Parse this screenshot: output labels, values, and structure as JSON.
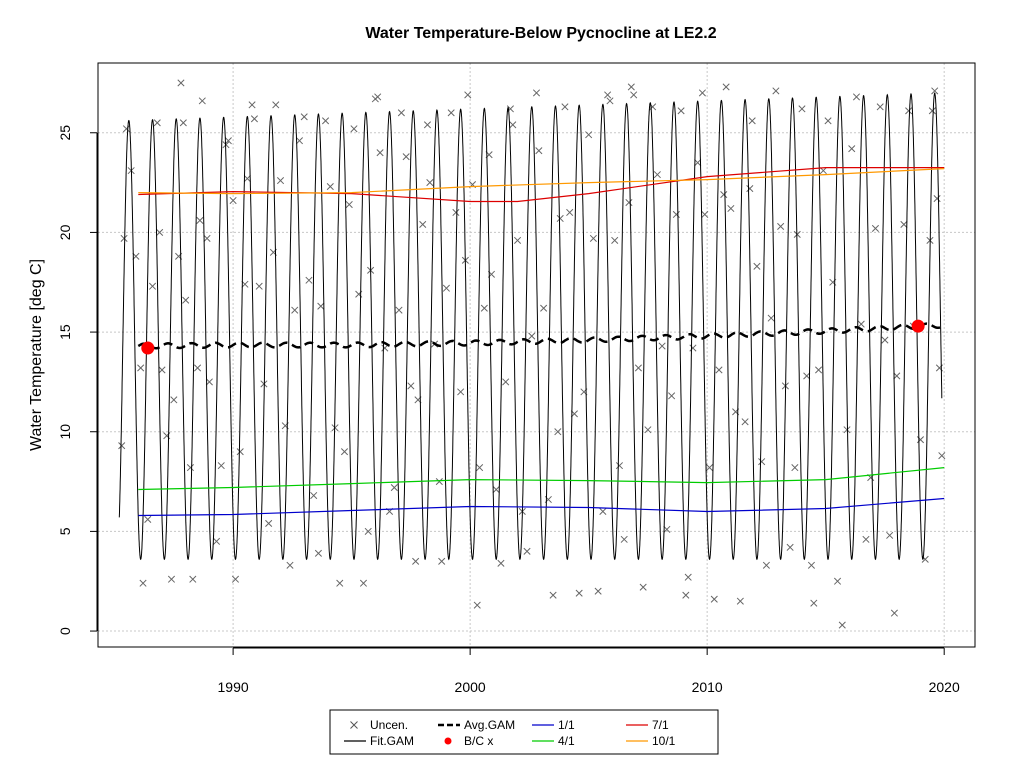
{
  "chart_data": {
    "type": "line",
    "title": "Water Temperature-Below Pycnocline at LE2.2",
    "xlabel": "",
    "ylabel": "Water Temperature [deg C]",
    "xlim": [
      1984.3,
      2021.3
    ],
    "ylim": [
      -0.8,
      28.5
    ],
    "x_ticks": [
      {
        "value": 1990,
        "label": "1990"
      },
      {
        "value": 2000,
        "label": "2000"
      },
      {
        "value": 2010,
        "label": "2010"
      },
      {
        "value": 2020,
        "label": "2020"
      }
    ],
    "y_ticks": [
      {
        "value": 0,
        "label": "0"
      },
      {
        "value": 5,
        "label": "5"
      },
      {
        "value": 10,
        "label": "10"
      },
      {
        "value": 15,
        "label": "15"
      },
      {
        "value": 20,
        "label": "20"
      },
      {
        "value": 25,
        "label": "25"
      }
    ],
    "grid": true,
    "legend": {
      "placement": "bottom-center",
      "entries": [
        {
          "label": "Uncen.",
          "symbol": "x",
          "color": "#555555"
        },
        {
          "label": "Fit.GAM",
          "symbol": "line",
          "color": "#000000"
        },
        {
          "label": "Avg.GAM",
          "symbol": "dashed-line",
          "color": "#000000"
        },
        {
          "label": "B/C x",
          "symbol": "dot",
          "color": "#ff0000"
        },
        {
          "label": "1/1",
          "symbol": "line",
          "color": "#0000cc"
        },
        {
          "label": "4/1",
          "symbol": "line",
          "color": "#00cc00"
        },
        {
          "label": "7/1",
          "symbol": "line",
          "color": "#dd0000"
        },
        {
          "label": "10/1",
          "symbol": "line",
          "color": "#ff9900"
        }
      ]
    },
    "series": [
      {
        "name": "Fit.GAM",
        "color": "#000000",
        "style": "seasonal-oscillation",
        "x_start": 1985.2,
        "x_end": 2019.9,
        "base_min": 3.6,
        "base_max": 25.6,
        "max_end": 27.0,
        "peak_phase": 0.6
      },
      {
        "name": "Avg.GAM",
        "color": "#000000",
        "style": "dashed",
        "x": [
          1986,
          1990,
          1995,
          2000,
          2005,
          2010,
          2015,
          2020
        ],
        "y": [
          14.3,
          14.35,
          14.35,
          14.45,
          14.6,
          14.8,
          15.05,
          15.35
        ]
      },
      {
        "name": "1/1",
        "color": "#0000cc",
        "x": [
          1986,
          1990,
          1995,
          2000,
          2005,
          2010,
          2015,
          2020
        ],
        "y": [
          5.8,
          5.85,
          6.05,
          6.25,
          6.2,
          6.0,
          6.15,
          6.65
        ]
      },
      {
        "name": "4/1",
        "color": "#00cc00",
        "x": [
          1986,
          1990,
          1995,
          2000,
          2005,
          2010,
          2015,
          2020
        ],
        "y": [
          7.1,
          7.2,
          7.4,
          7.6,
          7.55,
          7.45,
          7.6,
          8.2
        ]
      },
      {
        "name": "7/1",
        "color": "#dd0000",
        "x": [
          1986,
          1990,
          1995,
          2000,
          2002,
          2005,
          2010,
          2015,
          2020
        ],
        "y": [
          21.9,
          22.05,
          21.95,
          21.55,
          21.55,
          21.95,
          22.8,
          23.25,
          23.25
        ]
      },
      {
        "name": "10/1",
        "color": "#ff9900",
        "x": [
          1986,
          1990,
          1995,
          2000,
          2005,
          2010,
          2015,
          2020
        ],
        "y": [
          22.0,
          21.95,
          22.0,
          22.3,
          22.5,
          22.65,
          22.9,
          23.2
        ]
      },
      {
        "name": "B/C x",
        "color": "#ff0000",
        "style": "points",
        "x": [
          1986.4,
          2018.9
        ],
        "y": [
          14.2,
          15.3
        ]
      }
    ],
    "uncensored_points": [
      [
        1985.3,
        9.3
      ],
      [
        1985.4,
        19.7
      ],
      [
        1985.5,
        25.2
      ],
      [
        1985.7,
        23.1
      ],
      [
        1985.9,
        18.8
      ],
      [
        1986.1,
        13.2
      ],
      [
        1986.2,
        2.4
      ],
      [
        1986.4,
        5.6
      ],
      [
        1986.6,
        17.3
      ],
      [
        1986.8,
        25.5
      ],
      [
        1986.9,
        20.0
      ],
      [
        1987.0,
        13.1
      ],
      [
        1987.2,
        9.8
      ],
      [
        1987.4,
        2.6
      ],
      [
        1987.5,
        11.6
      ],
      [
        1987.7,
        18.8
      ],
      [
        1987.8,
        27.5
      ],
      [
        1987.9,
        25.5
      ],
      [
        1988.0,
        16.6
      ],
      [
        1988.2,
        8.2
      ],
      [
        1988.3,
        2.6
      ],
      [
        1988.5,
        13.2
      ],
      [
        1988.6,
        20.6
      ],
      [
        1988.7,
        26.6
      ],
      [
        1988.9,
        19.7
      ],
      [
        1989.0,
        12.5
      ],
      [
        1989.3,
        4.5
      ],
      [
        1989.5,
        8.3
      ],
      [
        1989.7,
        24.4
      ],
      [
        1989.8,
        24.6
      ],
      [
        1990.0,
        21.6
      ],
      [
        1990.1,
        2.6
      ],
      [
        1990.3,
        9.0
      ],
      [
        1990.5,
        17.4
      ],
      [
        1990.6,
        22.7
      ],
      [
        1990.8,
        26.4
      ],
      [
        1990.9,
        25.7
      ],
      [
        1991.1,
        17.3
      ],
      [
        1991.3,
        12.4
      ],
      [
        1991.5,
        5.4
      ],
      [
        1991.7,
        19.0
      ],
      [
        1991.8,
        26.4
      ],
      [
        1992.0,
        22.6
      ],
      [
        1992.2,
        10.3
      ],
      [
        1992.4,
        3.3
      ],
      [
        1992.6,
        16.1
      ],
      [
        1992.8,
        24.6
      ],
      [
        1993.0,
        25.8
      ],
      [
        1993.2,
        17.6
      ],
      [
        1993.4,
        6.8
      ],
      [
        1993.6,
        3.9
      ],
      [
        1993.7,
        16.3
      ],
      [
        1993.9,
        25.6
      ],
      [
        1994.1,
        22.3
      ],
      [
        1994.3,
        10.2
      ],
      [
        1994.5,
        2.4
      ],
      [
        1994.7,
        9.0
      ],
      [
        1994.9,
        21.4
      ],
      [
        1995.1,
        25.2
      ],
      [
        1995.3,
        16.9
      ],
      [
        1995.5,
        2.4
      ],
      [
        1995.7,
        5.0
      ],
      [
        1995.8,
        18.1
      ],
      [
        1996.0,
        26.7
      ],
      [
        1996.1,
        26.8
      ],
      [
        1996.2,
        24.0
      ],
      [
        1996.4,
        14.2
      ],
      [
        1996.6,
        6.0
      ],
      [
        1996.8,
        7.2
      ],
      [
        1997.0,
        16.1
      ],
      [
        1997.1,
        26.0
      ],
      [
        1997.3,
        23.8
      ],
      [
        1997.5,
        12.3
      ],
      [
        1997.7,
        3.5
      ],
      [
        1997.8,
        11.6
      ],
      [
        1998.0,
        20.4
      ],
      [
        1998.2,
        25.4
      ],
      [
        1998.3,
        22.5
      ],
      [
        1998.5,
        14.4
      ],
      [
        1998.7,
        7.5
      ],
      [
        1998.8,
        3.5
      ],
      [
        1999.0,
        17.2
      ],
      [
        1999.2,
        26.0
      ],
      [
        1999.4,
        21.0
      ],
      [
        1999.6,
        12.0
      ],
      [
        1999.8,
        18.6
      ],
      [
        1999.9,
        26.9
      ],
      [
        2000.1,
        22.4
      ],
      [
        2000.3,
        1.3
      ],
      [
        2000.4,
        8.2
      ],
      [
        2000.6,
        16.2
      ],
      [
        2000.8,
        23.9
      ],
      [
        2000.9,
        17.9
      ],
      [
        2001.1,
        7.1
      ],
      [
        2001.3,
        3.4
      ],
      [
        2001.5,
        12.5
      ],
      [
        2001.7,
        26.2
      ],
      [
        2001.8,
        25.4
      ],
      [
        2002.0,
        19.6
      ],
      [
        2002.2,
        6.0
      ],
      [
        2002.4,
        4.0
      ],
      [
        2002.6,
        14.8
      ],
      [
        2002.8,
        27.0
      ],
      [
        2002.9,
        24.1
      ],
      [
        2003.1,
        16.2
      ],
      [
        2003.3,
        6.6
      ],
      [
        2003.5,
        1.8
      ],
      [
        2003.7,
        10.0
      ],
      [
        2003.8,
        20.7
      ],
      [
        2004.0,
        26.3
      ],
      [
        2004.2,
        21.0
      ],
      [
        2004.4,
        10.9
      ],
      [
        2004.6,
        1.9
      ],
      [
        2004.8,
        12.0
      ],
      [
        2005.0,
        24.9
      ],
      [
        2005.2,
        19.7
      ],
      [
        2005.4,
        2.0
      ],
      [
        2005.6,
        6.0
      ],
      [
        2005.8,
        26.9
      ],
      [
        2005.9,
        26.6
      ],
      [
        2006.1,
        19.6
      ],
      [
        2006.3,
        8.3
      ],
      [
        2006.5,
        4.6
      ],
      [
        2006.7,
        21.5
      ],
      [
        2006.8,
        27.3
      ],
      [
        2006.9,
        26.9
      ],
      [
        2007.1,
        13.2
      ],
      [
        2007.3,
        2.2
      ],
      [
        2007.5,
        10.1
      ],
      [
        2007.7,
        26.3
      ],
      [
        2007.9,
        22.9
      ],
      [
        2008.1,
        14.3
      ],
      [
        2008.3,
        5.1
      ],
      [
        2008.5,
        11.8
      ],
      [
        2008.7,
        20.9
      ],
      [
        2008.9,
        26.1
      ],
      [
        2009.1,
        1.8
      ],
      [
        2009.2,
        2.7
      ],
      [
        2009.4,
        14.2
      ],
      [
        2009.6,
        23.5
      ],
      [
        2009.8,
        27.0
      ],
      [
        2009.9,
        20.9
      ],
      [
        2010.1,
        8.2
      ],
      [
        2010.3,
        1.6
      ],
      [
        2010.5,
        13.1
      ],
      [
        2010.7,
        21.9
      ],
      [
        2010.8,
        27.3
      ],
      [
        2011.0,
        21.2
      ],
      [
        2011.2,
        11.0
      ],
      [
        2011.4,
        1.5
      ],
      [
        2011.6,
        10.5
      ],
      [
        2011.8,
        22.2
      ],
      [
        2011.9,
        25.6
      ],
      [
        2012.1,
        18.3
      ],
      [
        2012.3,
        8.5
      ],
      [
        2012.5,
        3.3
      ],
      [
        2012.7,
        15.7
      ],
      [
        2012.9,
        27.1
      ],
      [
        2013.1,
        20.3
      ],
      [
        2013.3,
        12.3
      ],
      [
        2013.5,
        4.2
      ],
      [
        2013.7,
        8.2
      ],
      [
        2013.8,
        19.9
      ],
      [
        2014.0,
        26.2
      ],
      [
        2014.2,
        12.8
      ],
      [
        2014.4,
        3.3
      ],
      [
        2014.5,
        1.4
      ],
      [
        2014.7,
        13.1
      ],
      [
        2014.9,
        23.1
      ],
      [
        2015.1,
        25.6
      ],
      [
        2015.3,
        17.5
      ],
      [
        2015.5,
        2.5
      ],
      [
        2015.7,
        0.3
      ],
      [
        2015.9,
        10.1
      ],
      [
        2016.1,
        24.2
      ],
      [
        2016.3,
        26.8
      ],
      [
        2016.5,
        15.4
      ],
      [
        2016.7,
        4.6
      ],
      [
        2016.9,
        7.7
      ],
      [
        2017.1,
        20.2
      ],
      [
        2017.3,
        26.3
      ],
      [
        2017.5,
        14.6
      ],
      [
        2017.7,
        4.8
      ],
      [
        2017.9,
        0.9
      ],
      [
        2018.0,
        12.8
      ],
      [
        2018.3,
        20.4
      ],
      [
        2018.5,
        26.1
      ],
      [
        2018.7,
        15.3
      ],
      [
        2019.0,
        9.6
      ],
      [
        2019.2,
        3.6
      ],
      [
        2019.4,
        19.6
      ],
      [
        2019.5,
        26.1
      ],
      [
        2019.6,
        27.1
      ],
      [
        2019.7,
        21.7
      ],
      [
        2019.8,
        13.2
      ],
      [
        2019.9,
        8.8
      ]
    ]
  }
}
